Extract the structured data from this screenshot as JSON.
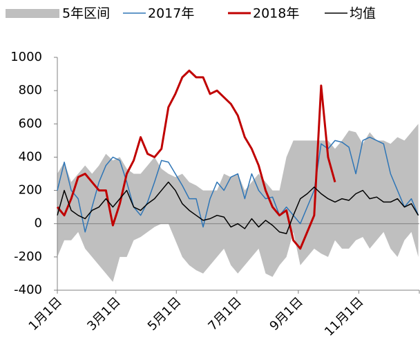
{
  "chart_data": {
    "type": "line",
    "x": [
      0,
      7,
      14,
      21,
      28,
      35,
      42,
      49,
      56,
      63,
      70,
      77,
      84,
      91,
      98,
      105,
      112,
      119,
      126,
      133,
      140,
      147,
      154,
      161,
      168,
      175,
      182,
      189,
      196,
      203,
      210,
      217,
      224,
      231,
      238,
      245,
      252,
      259,
      266,
      273,
      280,
      287,
      294,
      301,
      308,
      315,
      322,
      329,
      336,
      343,
      350,
      357,
      364
    ],
    "xlim": [
      0,
      365
    ],
    "xticks": [
      {
        "value": 0,
        "label": "1月1日"
      },
      {
        "value": 59,
        "label": "3月1日"
      },
      {
        "value": 120,
        "label": "5月1日"
      },
      {
        "value": 181,
        "label": "7月1日"
      },
      {
        "value": 243,
        "label": "9月1日"
      },
      {
        "value": 304,
        "label": "11月1日"
      }
    ],
    "ylim": [
      -400,
      1000
    ],
    "yticks": [
      -400,
      -200,
      0,
      200,
      400,
      600,
      800,
      1000
    ],
    "band": {
      "name": "5年区间",
      "color": "#bfbfbf",
      "high": [
        300,
        370,
        250,
        300,
        350,
        300,
        350,
        420,
        380,
        400,
        330,
        300,
        300,
        350,
        400,
        330,
        300,
        280,
        300,
        250,
        230,
        200,
        200,
        200,
        300,
        280,
        300,
        200,
        250,
        300,
        250,
        200,
        200,
        400,
        500,
        500,
        500,
        500,
        500,
        500,
        450,
        500,
        560,
        550,
        480,
        550,
        500,
        500,
        480,
        520,
        500,
        550,
        600
      ],
      "low": [
        -200,
        -100,
        -100,
        -50,
        -150,
        -200,
        -250,
        -300,
        -350,
        -200,
        -200,
        -100,
        -80,
        -50,
        -20,
        0,
        0,
        -100,
        -200,
        -250,
        -280,
        -300,
        -250,
        -200,
        -150,
        -250,
        -300,
        -250,
        -200,
        -150,
        -300,
        -320,
        -250,
        -200,
        -50,
        -250,
        -200,
        -150,
        -180,
        -200,
        -100,
        -150,
        -150,
        -100,
        -80,
        -150,
        -100,
        -50,
        -150,
        -200,
        -100,
        -50,
        -200
      ]
    },
    "series": [
      {
        "name": "2017年",
        "color": "#2e75b6",
        "width": 1.5,
        "values": [
          200,
          370,
          200,
          150,
          -50,
          100,
          250,
          350,
          400,
          380,
          250,
          100,
          50,
          130,
          250,
          380,
          370,
          300,
          230,
          150,
          150,
          -20,
          150,
          250,
          200,
          280,
          300,
          150,
          300,
          200,
          150,
          160,
          50,
          100,
          50,
          0,
          100,
          200,
          480,
          450,
          500,
          490,
          460,
          300,
          500,
          520,
          500,
          480,
          300,
          200,
          100,
          150,
          50
        ]
      },
      {
        "name": "2018年",
        "color": "#c00000",
        "width": 3,
        "values": [
          100,
          50,
          150,
          280,
          300,
          250,
          200,
          200,
          -10,
          120,
          300,
          380,
          520,
          420,
          400,
          450,
          700,
          780,
          880,
          920,
          880,
          880,
          780,
          800,
          760,
          720,
          650,
          520,
          450,
          350,
          200,
          100,
          50,
          80,
          -100,
          -150,
          -50,
          50,
          830,
          400,
          250,
          null,
          null,
          null,
          null,
          null,
          null,
          null,
          null,
          null,
          null,
          null,
          null
        ]
      },
      {
        "name": "均值",
        "color": "#000000",
        "width": 1.5,
        "values": [
          50,
          200,
          80,
          50,
          30,
          80,
          100,
          150,
          100,
          150,
          200,
          100,
          80,
          120,
          150,
          200,
          250,
          200,
          120,
          80,
          50,
          20,
          30,
          50,
          40,
          -20,
          0,
          -30,
          30,
          -20,
          20,
          -10,
          -50,
          -60,
          50,
          150,
          180,
          220,
          180,
          150,
          130,
          150,
          140,
          180,
          200,
          150,
          160,
          130,
          130,
          150,
          100,
          120,
          50
        ]
      }
    ]
  }
}
